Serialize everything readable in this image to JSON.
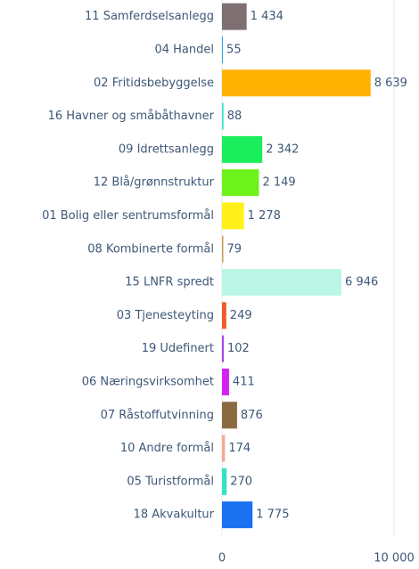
{
  "chart_data": {
    "type": "hbar",
    "categories": [
      "11 Samferdselsanlegg",
      "04 Handel",
      "02 Fritidsbebyggelse",
      "16 Havner og småbåthavner",
      "09 Idrettsanlegg",
      "12 Blå/grønnstruktur",
      "01 Bolig eller sentrumsformål",
      "08 Kombinerte formål",
      "15 LNFR spredt",
      "03 Tjenesteyting",
      "19 Udefinert",
      "06 Næringsvirksomhet",
      "07 Råstoffutvinning",
      "10 Andre formål",
      "05 Turistformål",
      "18 Akvakultur"
    ],
    "values": [
      1434,
      55,
      8639,
      88,
      2342,
      2149,
      1278,
      79,
      6946,
      249,
      102,
      411,
      876,
      174,
      270,
      1775
    ],
    "value_labels": [
      "1 434",
      "55",
      "8 639",
      "88",
      "2 342",
      "2 149",
      "1 278",
      "79",
      "6 946",
      "249",
      "102",
      "411",
      "876",
      "174",
      "270",
      "1 775"
    ],
    "colors": [
      "#7d6f72",
      "#2aa8e2",
      "#ffb000",
      "#3ee0c4",
      "#1bee5c",
      "#6ef21c",
      "#fff01a",
      "#c9a055",
      "#bbf6e6",
      "#f05a28",
      "#a444e4",
      "#d222f0",
      "#8b6a42",
      "#f5aa94",
      "#34e2c4",
      "#1a72f0"
    ],
    "xlim": [
      0,
      10000
    ],
    "xticks": [
      0,
      {
        "value": 10000,
        "label": "10 000"
      }
    ],
    "grid": true
  }
}
